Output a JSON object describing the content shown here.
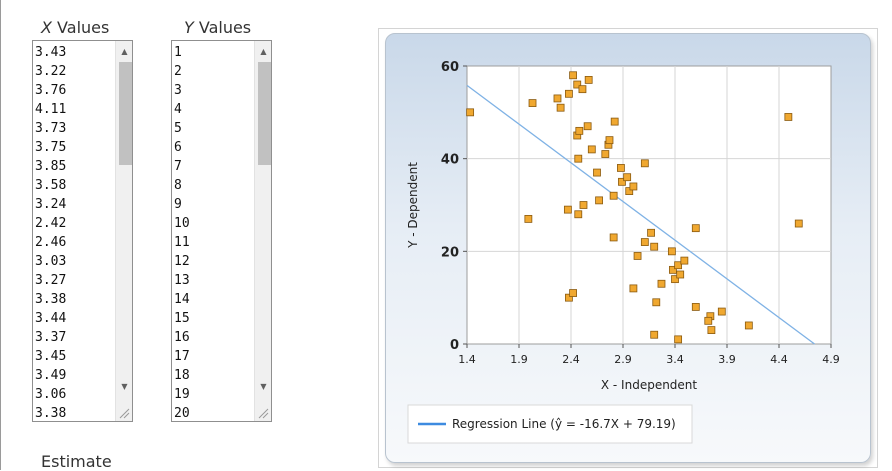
{
  "x_column": {
    "label_prefix": "X",
    "label_suffix": " Values",
    "values": [
      "3.43",
      "3.22",
      "3.76",
      "4.11",
      "3.73",
      "3.75",
      "3.85",
      "3.58",
      "3.24",
      "2.42",
      "2.46",
      "3.03",
      "3.27",
      "3.38",
      "3.44",
      "3.37",
      "3.45",
      "3.49",
      "3.06",
      "3.38"
    ]
  },
  "y_column": {
    "label_prefix": "Y",
    "label_suffix": " Values",
    "values": [
      "1",
      "2",
      "3",
      "4",
      "5",
      "6",
      "7",
      "8",
      "9",
      "10",
      "11",
      "12",
      "13",
      "14",
      "15",
      "16",
      "17",
      "18",
      "19",
      "20"
    ]
  },
  "estimate_label": "Estimate",
  "chart_data": {
    "type": "scatter",
    "xlabel": "X - Independent",
    "ylabel": "Y - Dependent",
    "xlim": [
      1.4,
      4.9
    ],
    "ylim": [
      0,
      60
    ],
    "xticks": [
      "1.4",
      "1.9",
      "2.4",
      "2.9",
      "3.4",
      "3.9",
      "4.4",
      "4.9"
    ],
    "yticks": [
      "0",
      "20",
      "40",
      "60"
    ],
    "grid": true,
    "legend_position": "bottom-left",
    "colors": {
      "points": "#f0a830",
      "point_border": "#8a5a10",
      "line": "#7fb2e5",
      "legend_line": "#3d8be0"
    },
    "regression": {
      "label": "Regression Line (ŷ = -16.7X + 79.19)",
      "slope": -16.7,
      "intercept": 79.19
    },
    "points": [
      [
        1.43,
        50
      ],
      [
        1.99,
        27
      ],
      [
        2.03,
        52
      ],
      [
        2.27,
        53
      ],
      [
        2.3,
        51
      ],
      [
        2.37,
        29
      ],
      [
        2.38,
        10
      ],
      [
        2.38,
        54
      ],
      [
        2.42,
        11
      ],
      [
        2.42,
        58
      ],
      [
        2.46,
        56
      ],
      [
        2.47,
        28
      ],
      [
        2.46,
        45
      ],
      [
        2.48,
        46
      ],
      [
        2.51,
        55
      ],
      [
        2.47,
        40
      ],
      [
        2.52,
        30
      ],
      [
        2.57,
        57
      ],
      [
        2.56,
        47
      ],
      [
        2.6,
        42
      ],
      [
        2.67,
        31
      ],
      [
        2.65,
        37
      ],
      [
        2.73,
        41
      ],
      [
        2.76,
        43
      ],
      [
        2.77,
        44
      ],
      [
        2.81,
        23
      ],
      [
        2.82,
        48
      ],
      [
        2.81,
        32
      ],
      [
        2.88,
        38
      ],
      [
        2.89,
        35
      ],
      [
        2.96,
        33
      ],
      [
        2.94,
        36
      ],
      [
        3.0,
        34
      ],
      [
        3.0,
        12
      ],
      [
        3.04,
        19
      ],
      [
        3.11,
        22
      ],
      [
        3.11,
        39
      ],
      [
        3.17,
        24
      ],
      [
        3.2,
        21
      ],
      [
        3.22,
        9
      ],
      [
        3.2,
        2
      ],
      [
        3.27,
        13
      ],
      [
        3.38,
        16
      ],
      [
        3.37,
        20
      ],
      [
        3.4,
        14
      ],
      [
        3.45,
        15
      ],
      [
        3.43,
        17
      ],
      [
        3.49,
        18
      ],
      [
        3.6,
        25
      ],
      [
        3.6,
        8
      ],
      [
        3.74,
        6
      ],
      [
        3.72,
        5
      ],
      [
        3.75,
        3
      ],
      [
        3.85,
        7
      ],
      [
        3.43,
        1
      ],
      [
        4.11,
        4
      ],
      [
        4.49,
        49
      ],
      [
        4.59,
        26
      ]
    ]
  }
}
